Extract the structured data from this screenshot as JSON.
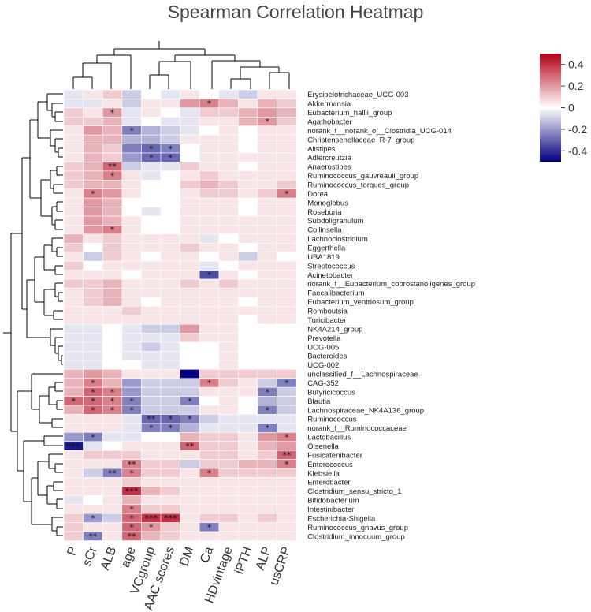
{
  "chart_data": {
    "type": "heatmap",
    "title": "Spearman Correlation Heatmap",
    "columns": [
      "P",
      "sCr",
      "ALB",
      "age",
      "VCgroup",
      "AAC scores",
      "DM",
      "Ca",
      "HDvintage",
      "iPTH",
      "ALP",
      "usCRP"
    ],
    "rows": [
      "Erysipelotrichaceae_UCG-003",
      "Akkermansia",
      "Eubacterium_hallii_group",
      "Agathobacter",
      "norank_f__norank_o__Clostridia_UCG-014",
      "Christensenellaceae_R-7_group",
      "Alistipes",
      "Adlercreutzia",
      "Anaerostipes",
      "Ruminococcus_gauvreauii_group",
      "Ruminococcus_torques_group",
      "Dorea",
      "Monoglobus",
      "Roseburia",
      "Subdoligranulum",
      "Collinsella",
      "Lachnoclostridium",
      "Eggerthella",
      "UBA1819",
      "Streptococcus",
      "Acinetobacter",
      "norank_f__Eubacterium_coprostanoligenes_group",
      "Faecalibacterium",
      "Eubacterium_ventriosum_group",
      "Romboutsia",
      "Turicibacter",
      "NK4A214_group",
      "Prevotella",
      "UCG-005",
      "Bacteroides",
      "UCG-002",
      "unclassified_f__Lachnospiraceae",
      "CAG-352",
      "Butyricicoccus",
      "Blautia",
      "Lachnospiraceae_NK4A136_group",
      "Ruminococcus",
      "norank_f__Ruminococcaceae",
      "Lactobacillus",
      "Olsenella",
      "Fusicatenibacter",
      "Enterococcus",
      "Klebsiella",
      "Enterobacter",
      "Clostridium_sensu_stricto_1",
      "Bifidobacterium",
      "Intestinibacter",
      "Escherichia-Shigella",
      "Ruminococcus_gnavus_group",
      "Clostridium_innocuum_group"
    ],
    "values": [
      [
        -0.05,
        0.05,
        0.1,
        -0.1,
        0.0,
        -0.05,
        0.05,
        0.0,
        -0.05,
        -0.1,
        0.05,
        0.05
      ],
      [
        -0.05,
        -0.05,
        0.05,
        -0.1,
        0.05,
        0.05,
        0.2,
        0.25,
        0.15,
        0.05,
        0.15,
        0.1
      ],
      [
        0.1,
        0.05,
        0.2,
        -0.05,
        0.05,
        0.0,
        -0.05,
        0.1,
        0.1,
        0.15,
        0.2,
        0.15
      ],
      [
        0.1,
        0.1,
        0.15,
        -0.05,
        0.0,
        -0.05,
        -0.05,
        0.05,
        0.05,
        0.15,
        0.2,
        0.1
      ],
      [
        0.05,
        0.2,
        0.15,
        -0.25,
        -0.15,
        -0.1,
        -0.05,
        0.0,
        0.05,
        0.0,
        0.05,
        0.05
      ],
      [
        0.05,
        0.15,
        0.15,
        -0.15,
        -0.15,
        -0.1,
        0.05,
        0.05,
        0.05,
        0.0,
        0.05,
        0.05
      ],
      [
        0.05,
        0.15,
        0.1,
        -0.25,
        -0.3,
        -0.25,
        0.0,
        0.05,
        0.05,
        0.0,
        0.05,
        0.05
      ],
      [
        0.05,
        0.15,
        0.1,
        -0.2,
        -0.3,
        -0.3,
        0.0,
        0.05,
        0.05,
        0.05,
        0.05,
        0.05
      ],
      [
        0.1,
        0.15,
        0.3,
        -0.1,
        -0.05,
        -0.05,
        0.1,
        0.05,
        0.05,
        0.0,
        0.05,
        0.05
      ],
      [
        0.1,
        0.15,
        0.25,
        0.05,
        -0.05,
        0.0,
        0.05,
        0.1,
        0.05,
        0.05,
        0.05,
        0.05
      ],
      [
        0.1,
        0.15,
        0.15,
        0.05,
        0.0,
        0.0,
        0.1,
        0.15,
        0.1,
        0.05,
        0.05,
        0.1
      ],
      [
        0.05,
        0.25,
        0.2,
        0.05,
        0.0,
        0.0,
        0.05,
        0.1,
        0.1,
        0.05,
        0.1,
        0.25
      ],
      [
        0.05,
        0.2,
        0.15,
        0.0,
        0.0,
        0.0,
        0.05,
        0.05,
        0.05,
        0.0,
        0.05,
        0.05
      ],
      [
        0.05,
        0.2,
        0.15,
        0.0,
        -0.05,
        0.0,
        0.05,
        0.05,
        0.05,
        0.0,
        0.05,
        0.05
      ],
      [
        0.05,
        0.2,
        0.15,
        0.05,
        0.0,
        0.0,
        0.05,
        0.05,
        0.05,
        0.05,
        0.05,
        0.05
      ],
      [
        0.05,
        0.2,
        0.25,
        0.05,
        0.0,
        0.0,
        0.05,
        0.05,
        0.05,
        0.05,
        0.05,
        0.05
      ],
      [
        0.15,
        0.05,
        0.1,
        0.05,
        0.05,
        0.05,
        0.05,
        -0.05,
        0.0,
        0.05,
        0.05,
        0.05
      ],
      [
        0.1,
        0.0,
        0.1,
        0.05,
        0.05,
        0.05,
        0.1,
        0.05,
        0.05,
        0.0,
        0.05,
        0.05
      ],
      [
        0.05,
        -0.1,
        0.1,
        0.05,
        0.0,
        0.05,
        0.05,
        0.0,
        0.05,
        -0.1,
        0.05,
        0.0
      ],
      [
        0.1,
        0.0,
        0.05,
        0.05,
        0.05,
        0.05,
        0.05,
        -0.05,
        0.0,
        0.05,
        0.05,
        0.05
      ],
      [
        0.05,
        0.05,
        0.05,
        0.0,
        0.05,
        0.05,
        0.05,
        -0.35,
        0.05,
        0.0,
        0.05,
        0.05
      ],
      [
        0.1,
        0.1,
        0.15,
        0.05,
        0.05,
        0.05,
        0.1,
        0.05,
        0.1,
        0.05,
        0.05,
        0.05
      ],
      [
        0.05,
        0.1,
        0.15,
        0.05,
        0.05,
        0.05,
        0.05,
        0.05,
        0.05,
        0.05,
        0.05,
        0.05
      ],
      [
        0.05,
        0.1,
        0.15,
        0.05,
        0.0,
        0.05,
        0.05,
        0.05,
        0.05,
        0.0,
        0.05,
        0.05
      ],
      [
        0.05,
        0.05,
        0.05,
        0.1,
        0.05,
        0.05,
        0.05,
        0.05,
        0.05,
        0.05,
        0.05,
        0.05
      ],
      [
        0.05,
        0.05,
        0.05,
        0.05,
        0.05,
        0.05,
        0.05,
        0.05,
        0.05,
        0.0,
        0.05,
        0.05
      ],
      [
        -0.05,
        -0.05,
        0.0,
        -0.05,
        -0.1,
        -0.1,
        0.2,
        0.05,
        0.05,
        0.0,
        0.0,
        0.0
      ],
      [
        -0.05,
        -0.05,
        0.0,
        -0.05,
        -0.05,
        -0.05,
        0.1,
        0.05,
        0.05,
        0.0,
        0.0,
        0.0
      ],
      [
        -0.05,
        -0.05,
        0.0,
        -0.05,
        -0.1,
        -0.05,
        0.0,
        0.0,
        0.05,
        0.0,
        0.0,
        0.0
      ],
      [
        -0.05,
        -0.05,
        0.0,
        -0.05,
        -0.05,
        -0.05,
        0.0,
        0.0,
        0.05,
        0.0,
        0.0,
        0.0
      ],
      [
        -0.05,
        -0.05,
        0.0,
        0.0,
        -0.05,
        -0.05,
        0.0,
        0.0,
        0.05,
        0.0,
        0.0,
        0.0
      ],
      [
        0.15,
        0.2,
        0.15,
        0.05,
        0.05,
        0.05,
        -0.5,
        0.1,
        0.1,
        0.1,
        0.1,
        0.1
      ],
      [
        0.15,
        0.25,
        0.15,
        -0.2,
        -0.1,
        -0.1,
        -0.1,
        0.25,
        0.1,
        0.05,
        -0.1,
        -0.25
      ],
      [
        0.15,
        0.3,
        0.25,
        -0.2,
        -0.1,
        -0.1,
        -0.1,
        0.05,
        0.05,
        0.05,
        -0.25,
        -0.1
      ],
      [
        0.3,
        0.3,
        0.25,
        -0.25,
        -0.1,
        -0.1,
        -0.25,
        0.0,
        0.05,
        0.0,
        -0.15,
        -0.1
      ],
      [
        0.15,
        0.3,
        0.25,
        -0.25,
        -0.1,
        -0.1,
        -0.1,
        0.05,
        0.05,
        0.0,
        -0.25,
        -0.1
      ],
      [
        0.05,
        0.05,
        0.05,
        -0.05,
        -0.3,
        -0.3,
        -0.25,
        -0.1,
        -0.05,
        -0.05,
        -0.05,
        -0.05
      ],
      [
        0.05,
        0.05,
        0.05,
        -0.05,
        -0.25,
        -0.25,
        -0.15,
        -0.05,
        -0.05,
        -0.05,
        -0.25,
        -0.05
      ],
      [
        -0.2,
        -0.25,
        -0.05,
        -0.05,
        0.0,
        0.0,
        0.15,
        0.1,
        0.1,
        0.05,
        0.2,
        0.25
      ],
      [
        -0.45,
        -0.05,
        0.0,
        0.05,
        0.05,
        0.05,
        0.3,
        0.1,
        0.1,
        0.05,
        0.15,
        0.2
      ],
      [
        0.05,
        0.1,
        0.1,
        0.1,
        0.05,
        0.05,
        0.05,
        0.1,
        0.1,
        0.05,
        0.1,
        0.3
      ],
      [
        0.05,
        0.05,
        0.05,
        0.25,
        0.1,
        0.1,
        -0.1,
        0.1,
        0.1,
        0.15,
        0.15,
        0.25
      ],
      [
        0.05,
        -0.1,
        -0.25,
        0.25,
        0.1,
        0.1,
        0.05,
        0.25,
        0.1,
        0.1,
        0.1,
        0.1
      ],
      [
        0.05,
        0.05,
        0.05,
        0.1,
        0.05,
        0.05,
        0.05,
        0.05,
        0.05,
        0.05,
        0.05,
        0.05
      ],
      [
        0.05,
        0.05,
        0.05,
        0.4,
        0.15,
        0.1,
        0.05,
        0.05,
        0.05,
        0.05,
        0.05,
        0.05
      ],
      [
        -0.05,
        0.0,
        0.05,
        0.15,
        0.05,
        0.05,
        0.05,
        0.05,
        0.05,
        0.05,
        0.05,
        0.05
      ],
      [
        0.05,
        0.05,
        0.05,
        0.25,
        0.1,
        0.1,
        0.05,
        0.05,
        0.05,
        0.05,
        0.05,
        0.05
      ],
      [
        0.1,
        -0.2,
        -0.1,
        0.3,
        0.4,
        0.4,
        0.05,
        0.1,
        0.1,
        0.05,
        0.1,
        0.05
      ],
      [
        0.1,
        0.05,
        0.05,
        0.3,
        0.2,
        0.1,
        0.05,
        -0.25,
        0.05,
        0.05,
        0.05,
        0.05
      ],
      [
        0.1,
        -0.25,
        0.05,
        0.3,
        0.15,
        0.1,
        0.05,
        0.05,
        0.05,
        0.05,
        0.05,
        0.05
      ]
    ],
    "significance": [
      [
        "",
        "",
        "",
        "",
        "",
        "",
        "",
        "",
        "",
        "",
        "",
        ""
      ],
      [
        "",
        "",
        "",
        "",
        "",
        "",
        "",
        "*",
        "",
        "",
        "",
        ""
      ],
      [
        "",
        "",
        "*",
        "",
        "",
        "",
        "",
        "",
        "",
        "",
        "",
        ""
      ],
      [
        "",
        "",
        "",
        "",
        "",
        "",
        "",
        "",
        "",
        "",
        "*",
        ""
      ],
      [
        "",
        "",
        "",
        "*",
        "",
        "",
        "",
        "",
        "",
        "",
        "",
        ""
      ],
      [
        "",
        "",
        "",
        "",
        "",
        "",
        "",
        "",
        "",
        "",
        "",
        ""
      ],
      [
        "",
        "",
        "",
        "",
        "*",
        "*",
        "",
        "",
        "",
        "",
        "",
        ""
      ],
      [
        "",
        "",
        "",
        "",
        "*",
        "*",
        "",
        "",
        "",
        "",
        "",
        ""
      ],
      [
        "",
        "",
        "**",
        "",
        "",
        "",
        "",
        "",
        "",
        "",
        "",
        ""
      ],
      [
        "",
        "",
        "*",
        "",
        "",
        "",
        "",
        "",
        "",
        "",
        "",
        ""
      ],
      [
        "",
        "",
        "",
        "",
        "",
        "",
        "",
        "",
        "",
        "",
        "",
        ""
      ],
      [
        "",
        "*",
        "",
        "",
        "",
        "",
        "",
        "",
        "",
        "",
        "",
        "*"
      ],
      [
        "",
        "",
        "",
        "",
        "",
        "",
        "",
        "",
        "",
        "",
        "",
        ""
      ],
      [
        "",
        "",
        "",
        "",
        "",
        "",
        "",
        "",
        "",
        "",
        "",
        ""
      ],
      [
        "",
        "",
        "",
        "",
        "",
        "",
        "",
        "",
        "",
        "",
        "",
        ""
      ],
      [
        "",
        "",
        "*",
        "",
        "",
        "",
        "",
        "",
        "",
        "",
        "",
        ""
      ],
      [
        "",
        "",
        "",
        "",
        "",
        "",
        "",
        "",
        "",
        "",
        "",
        ""
      ],
      [
        "",
        "",
        "",
        "",
        "",
        "",
        "",
        "",
        "",
        "",
        "",
        ""
      ],
      [
        "",
        "",
        "",
        "",
        "",
        "",
        "",
        "",
        "",
        "",
        "",
        ""
      ],
      [
        "",
        "",
        "",
        "",
        "",
        "",
        "",
        "",
        "",
        "",
        "",
        ""
      ],
      [
        "",
        "",
        "",
        "",
        "",
        "",
        "",
        "*",
        "",
        "",
        "",
        ""
      ],
      [
        "",
        "",
        "",
        "",
        "",
        "",
        "",
        "",
        "",
        "",
        "",
        ""
      ],
      [
        "",
        "",
        "",
        "",
        "",
        "",
        "",
        "",
        "",
        "",
        "",
        ""
      ],
      [
        "",
        "",
        "",
        "",
        "",
        "",
        "",
        "",
        "",
        "",
        "",
        ""
      ],
      [
        "",
        "",
        "",
        "",
        "",
        "",
        "",
        "",
        "",
        "",
        "",
        ""
      ],
      [
        "",
        "",
        "",
        "",
        "",
        "",
        "",
        "",
        "",
        "",
        "",
        ""
      ],
      [
        "",
        "",
        "",
        "",
        "",
        "",
        "",
        "",
        "",
        "",
        "",
        ""
      ],
      [
        "",
        "",
        "",
        "",
        "",
        "",
        "",
        "",
        "",
        "",
        "",
        ""
      ],
      [
        "",
        "",
        "",
        "",
        "",
        "",
        "",
        "",
        "",
        "",
        "",
        ""
      ],
      [
        "",
        "",
        "",
        "",
        "",
        "",
        "",
        "",
        "",
        "",
        "",
        ""
      ],
      [
        "",
        "",
        "",
        "",
        "",
        "",
        "",
        "",
        "",
        "",
        "",
        ""
      ],
      [
        "",
        "",
        "",
        "",
        "",
        "",
        "",
        "",
        "",
        "",
        "",
        ""
      ],
      [
        "",
        "*",
        "",
        "",
        "",
        "",
        "",
        "*",
        "",
        "",
        "",
        "*"
      ],
      [
        "",
        "*",
        "*",
        "",
        "",
        "",
        "",
        "",
        "",
        "",
        "*",
        ""
      ],
      [
        "*",
        "*",
        "*",
        "*",
        "",
        "",
        "*",
        "",
        "",
        "",
        "",
        ""
      ],
      [
        "",
        "*",
        "*",
        "*",
        "",
        "",
        "",
        "",
        "",
        "",
        "*",
        ""
      ],
      [
        "",
        "",
        "",
        "",
        "**",
        "*",
        "*",
        "",
        "",
        "",
        "",
        ""
      ],
      [
        "",
        "",
        "",
        "",
        "*",
        "*",
        "",
        "",
        "",
        "",
        "*",
        ""
      ],
      [
        "",
        "*",
        "",
        "",
        "",
        "",
        "",
        "",
        "",
        "",
        "",
        "*"
      ],
      [
        "***",
        "",
        "",
        "",
        "",
        "",
        "**",
        "",
        "",
        "",
        "",
        ""
      ],
      [
        "",
        "",
        "",
        "",
        "",
        "",
        "",
        "",
        "",
        "",
        "",
        "**"
      ],
      [
        "",
        "",
        "",
        "**",
        "",
        "",
        "",
        "",
        "",
        "",
        "",
        "*"
      ],
      [
        "",
        "",
        "**",
        "*",
        "",
        "",
        "",
        "*",
        "",
        "",
        "",
        ""
      ],
      [
        "",
        "",
        "",
        "",
        "",
        "",
        "",
        "",
        "",
        "",
        "",
        ""
      ],
      [
        "",
        "",
        "",
        "***",
        "",
        "",
        "",
        "",
        "",
        "",
        "",
        ""
      ],
      [
        "",
        "",
        "",
        "",
        "",
        "",
        "",
        "",
        "",
        "",
        "",
        ""
      ],
      [
        "",
        "",
        "",
        "*",
        "",
        "",
        "",
        "",
        "",
        "",
        "",
        ""
      ],
      [
        "",
        "*",
        "",
        "*",
        "***",
        "***",
        "",
        "",
        "",
        "",
        "",
        ""
      ],
      [
        "",
        "",
        "",
        "*",
        "*",
        "",
        "",
        "*",
        "",
        "",
        "",
        ""
      ],
      [
        "",
        "**",
        "",
        "**",
        "",
        "",
        "",
        "",
        "",
        "",
        "",
        ""
      ]
    ],
    "legend": {
      "ticks": [
        0.4,
        0.2,
        0,
        -0.2,
        -0.4
      ],
      "range": [
        -0.5,
        0.5
      ],
      "colors": [
        "#00007e",
        "#ffffff",
        "#b20017"
      ]
    }
  }
}
